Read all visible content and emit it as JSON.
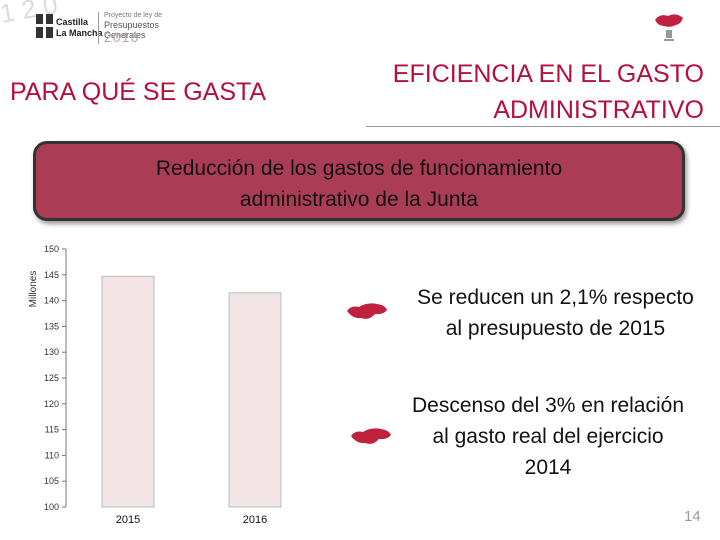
{
  "header": {
    "deco_numbers": "1 2 0",
    "brand_line1": "Castilla",
    "brand_line2": "La Mancha",
    "sub1": "Proyecto de ley de",
    "sub2": "Presupuestos Generales",
    "year": "2016"
  },
  "left_title": "PARA QUÉ SE GASTA",
  "right_title": {
    "line1": "EFICIENCIA EN EL GASTO",
    "line2": "ADMINISTRATIVO"
  },
  "banner": {
    "line1": "Reducción de los gastos de funcionamiento",
    "line2": "administrativo de la Junta"
  },
  "chart_data": {
    "type": "bar",
    "categories": [
      "2015",
      "2016"
    ],
    "values": [
      144.7,
      141.5
    ],
    "ylabel": "Millones",
    "ylim": [
      100,
      150
    ],
    "yticks": [
      100,
      105,
      110,
      115,
      120,
      125,
      130,
      135,
      140,
      145,
      150
    ],
    "grid": false,
    "bar_color": "#f2e4e4",
    "bar_edge_color": "#bdbdbd"
  },
  "callouts": [
    {
      "line1": "Se reducen un 2,1% respecto",
      "line2": "al presupuesto de 2015"
    },
    {
      "line1": "Descenso del 3% en relación",
      "line2": "al gasto real del ejercicio",
      "line3": "2014"
    }
  ],
  "page_number": "14",
  "colors": {
    "accent": "#b3103b",
    "banner": "#ab3c55",
    "bullet": "#c0213f"
  },
  "icons": {
    "bullet": "region-shape-bullet-icon",
    "logo": "castilla-la-mancha-shield-icon",
    "corner": "region-emblem-icon"
  }
}
